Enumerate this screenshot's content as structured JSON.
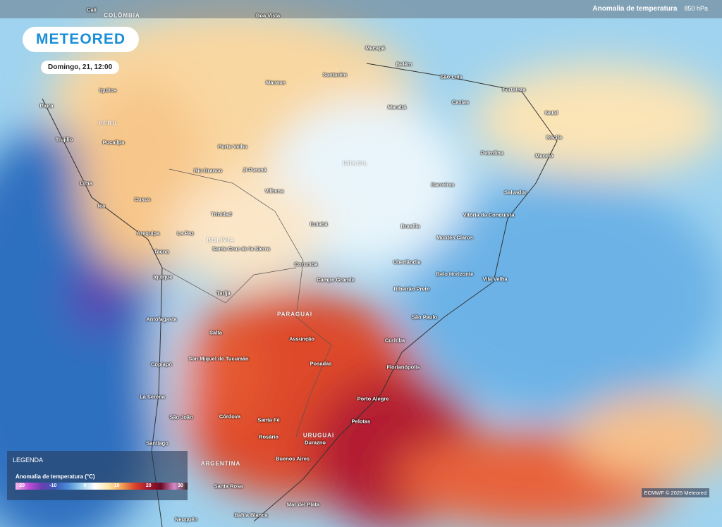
{
  "header": {
    "title": "Anomalia de temperatura",
    "unit": "850 hPa"
  },
  "logo": "METEORED",
  "date": "Domingo, 21, 12:00",
  "countries": [
    "COLÔMBIA",
    "PERU",
    "BRASIL",
    "BOLÍVIA",
    "PARAGUAI",
    "URUGUAI",
    "ARGENTINA"
  ],
  "cities": [
    "Cali",
    "Boa Vista",
    "Macapá",
    "Belém",
    "São Luís",
    "Fortaleza",
    "Natal",
    "Recife",
    "Maceió",
    "Manaus",
    "Santarém",
    "Marabá",
    "Caxias",
    "Iquitos",
    "Piura",
    "Trujillo",
    "Pucallpa",
    "Porto Velho",
    "Petrolina",
    "Rio Branco",
    "Ji-Paraná",
    "Lima",
    "Barreiras",
    "Salvador",
    "Cusco",
    "Vilhena",
    "Ica",
    "Trinidad",
    "Vitória da Conquista",
    "Arequipa",
    "La Paz",
    "Cuiabá",
    "Brasília",
    "Montes Claros",
    "Santa Cruz de la Sierra",
    "Tacna",
    "Corumbá",
    "Uberlândia",
    "Belo Horizonte",
    "Campo Grande",
    "Iquique",
    "Vila Velha",
    "Ribeirão Preto",
    "Tarija",
    "São Paulo",
    "Antofagasta",
    "Salta",
    "Assunção",
    "Curitiba",
    "Copiapó",
    "San Miguel de Tucumán",
    "Posadas",
    "Florianópolis",
    "La Serena",
    "Porto Alegre",
    "São João",
    "Córdova",
    "Santa Fé",
    "Pelotas",
    "Rosário",
    "Durazno",
    "Santiago",
    "Buenos Aires",
    "Santa Rosa",
    "Mar del Plata",
    "Bahía Blanca",
    "Neuquén"
  ],
  "legend": {
    "title": "LEGENDA",
    "subtitle": "Anomalia de temperatura (°C)",
    "ticks": [
      "-20",
      "-10",
      "0",
      "10",
      "20",
      "30"
    ]
  },
  "credit": "ECMWF © 2025 Meteored"
}
